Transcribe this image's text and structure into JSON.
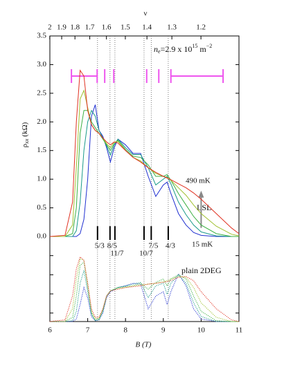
{
  "chart_data": [
    {
      "type": "line",
      "ylabel": {
        "symbol": "ρ",
        "subscript": "xx",
        "unit": "(kΩ)"
      },
      "x2label": "ν",
      "density": 2900000000000000.0,
      "density_label": {
        "symbol": "n",
        "subscript": "e",
        "mantissa": "=2.9 x 10",
        "exponent": "15",
        "unit": "m",
        "unit_exponent": "−2"
      },
      "x2ticks": [
        2,
        1.9,
        1.8,
        1.7,
        1.6,
        1.5,
        1.4,
        1.3,
        1.2
      ],
      "xlim": [
        6,
        11
      ],
      "ylim": [
        0,
        3.5
      ],
      "yticks": [
        {
          "value": 0,
          "label": "0.0"
        },
        0.5,
        {
          "value": 1,
          "label": "1.0"
        },
        1.5,
        {
          "value": 2,
          "label": "2.0"
        },
        2.5,
        {
          "value": 3,
          "label": "3.0"
        },
        3.5
      ],
      "line_style": "solid",
      "x": [
        6.0,
        6.4,
        6.6,
        6.7,
        6.8,
        6.9,
        7.0,
        7.1,
        7.2,
        7.3,
        7.4,
        7.5,
        7.6,
        7.7,
        7.8,
        8.0,
        8.2,
        8.4,
        8.6,
        8.8,
        9.0,
        9.1,
        9.2,
        9.4,
        9.6,
        9.8,
        10.0,
        10.4,
        10.8,
        11.0
      ],
      "series": [
        {
          "color": "#1f2fd0",
          "values": [
            0,
            0,
            0,
            0,
            0.05,
            0.3,
            1.0,
            2.1,
            2.3,
            1.85,
            1.75,
            1.55,
            1.3,
            1.55,
            1.7,
            1.6,
            1.45,
            1.45,
            1.05,
            0.7,
            0.9,
            0.95,
            0.75,
            0.4,
            0.2,
            0.07,
            0.02,
            0,
            0,
            0
          ]
        },
        {
          "color": "#1a9a8a",
          "values": [
            0,
            0,
            0,
            0.1,
            0.6,
            1.5,
            2.0,
            2.2,
            2.1,
            1.85,
            1.72,
            1.58,
            1.42,
            1.6,
            1.7,
            1.55,
            1.43,
            1.43,
            1.2,
            0.9,
            1.0,
            1.05,
            0.92,
            0.6,
            0.38,
            0.2,
            0.08,
            0.01,
            0,
            0
          ]
        },
        {
          "color": "#3cb043",
          "values": [
            0,
            0,
            0.05,
            0.5,
            1.8,
            2.2,
            2.2,
            2.0,
            1.9,
            1.8,
            1.7,
            1.6,
            1.5,
            1.62,
            1.68,
            1.52,
            1.4,
            1.38,
            1.25,
            1.05,
            1.05,
            1.08,
            0.98,
            0.75,
            0.55,
            0.35,
            0.2,
            0.05,
            0,
            0
          ]
        },
        {
          "color": "#a0c030",
          "values": [
            0,
            0,
            0.2,
            1.2,
            2.4,
            2.55,
            2.25,
            1.95,
            1.85,
            1.8,
            1.72,
            1.62,
            1.55,
            1.65,
            1.66,
            1.5,
            1.38,
            1.32,
            1.2,
            1.1,
            1.05,
            1.03,
            0.98,
            0.85,
            0.72,
            0.55,
            0.4,
            0.18,
            0.04,
            0.01
          ]
        },
        {
          "color": "#e03020",
          "values": [
            0,
            0.02,
            0.6,
            2.0,
            2.9,
            2.8,
            2.2,
            1.95,
            1.85,
            1.8,
            1.72,
            1.65,
            1.6,
            1.65,
            1.63,
            1.5,
            1.38,
            1.3,
            1.2,
            1.12,
            1.05,
            1.02,
            0.99,
            0.92,
            0.85,
            0.76,
            0.65,
            0.4,
            0.15,
            0.05
          ]
        }
      ],
      "fractions": [
        {
          "label": "5/3",
          "B": 7.26
        },
        {
          "label": "8/5",
          "B": 7.59
        },
        {
          "label": "11/7",
          "B": 7.72
        },
        {
          "label": "10/7",
          "B": 8.49
        },
        {
          "label": "7/5",
          "B": 8.68
        },
        {
          "label": "4/3",
          "B": 9.13
        }
      ],
      "bracket_color": "#ee55ee",
      "bracket_y": 2.8,
      "bracket_ticks": [
        6.57,
        7.25,
        7.45,
        7.69,
        8.56,
        8.88,
        9.2,
        10.58
      ],
      "bracket_segments": [
        [
          6.57,
          7.25
        ],
        [
          9.2,
          10.58
        ]
      ],
      "arrow": {
        "B": 10.0,
        "from": 0.15,
        "to": 0.8,
        "color": "#888888"
      },
      "annotations": {
        "high_t": "490 mK",
        "low_t": "15 mK",
        "sample": "LSL"
      }
    },
    {
      "type": "line",
      "xlabel": "B (T)",
      "xlim": [
        6,
        11
      ],
      "xticks": [
        6,
        7,
        8,
        9,
        10,
        11
      ],
      "ylim": [
        0,
        1
      ],
      "yticks": [
        0.1,
        0.325,
        0.55,
        0.775
      ],
      "line_style": "dotted",
      "x": [
        6.0,
        6.4,
        6.6,
        6.7,
        6.8,
        6.9,
        7.0,
        7.1,
        7.2,
        7.3,
        7.4,
        7.5,
        7.6,
        7.7,
        7.8,
        8.0,
        8.2,
        8.4,
        8.6,
        8.8,
        9.0,
        9.1,
        9.2,
        9.4,
        9.6,
        9.8,
        10.0,
        10.4,
        10.8,
        11.0
      ],
      "series": [
        {
          "color": "#1f2fd0",
          "values": [
            0,
            0,
            0,
            0.03,
            0.2,
            0.4,
            0.28,
            0.06,
            0.01,
            0.02,
            0.1,
            0.28,
            0.35,
            0.37,
            0.4,
            0.42,
            0.45,
            0.44,
            0.15,
            0.3,
            0.35,
            0.2,
            0.35,
            0.56,
            0.42,
            0.15,
            0.03,
            0,
            0,
            0
          ]
        },
        {
          "color": "#1a9a8a",
          "values": [
            0,
            0,
            0.01,
            0.12,
            0.45,
            0.6,
            0.35,
            0.08,
            0.01,
            0.02,
            0.12,
            0.3,
            0.36,
            0.38,
            0.4,
            0.42,
            0.44,
            0.46,
            0.28,
            0.42,
            0.45,
            0.32,
            0.45,
            0.55,
            0.45,
            0.22,
            0.06,
            0,
            0,
            0
          ]
        },
        {
          "color": "#3cb043",
          "values": [
            0,
            0,
            0.05,
            0.3,
            0.66,
            0.7,
            0.4,
            0.1,
            0.02,
            0.03,
            0.13,
            0.3,
            0.36,
            0.38,
            0.4,
            0.41,
            0.42,
            0.45,
            0.38,
            0.46,
            0.5,
            0.42,
            0.5,
            0.55,
            0.5,
            0.3,
            0.12,
            0.01,
            0,
            0
          ]
        },
        {
          "color": "#a0c030",
          "values": [
            0,
            0,
            0.15,
            0.5,
            0.74,
            0.72,
            0.45,
            0.12,
            0.03,
            0.04,
            0.14,
            0.3,
            0.36,
            0.38,
            0.39,
            0.4,
            0.42,
            0.43,
            0.44,
            0.45,
            0.47,
            0.48,
            0.5,
            0.53,
            0.52,
            0.4,
            0.22,
            0.05,
            0,
            0
          ]
        },
        {
          "color": "#e03020",
          "values": [
            0,
            0.02,
            0.3,
            0.62,
            0.76,
            0.72,
            0.45,
            0.15,
            0.05,
            0.05,
            0.15,
            0.3,
            0.36,
            0.37,
            0.38,
            0.4,
            0.41,
            0.42,
            0.44,
            0.45,
            0.46,
            0.47,
            0.48,
            0.52,
            0.53,
            0.48,
            0.35,
            0.15,
            0.02,
            0
          ]
        }
      ],
      "annotations": {
        "sample": "plain 2DEG"
      }
    }
  ]
}
